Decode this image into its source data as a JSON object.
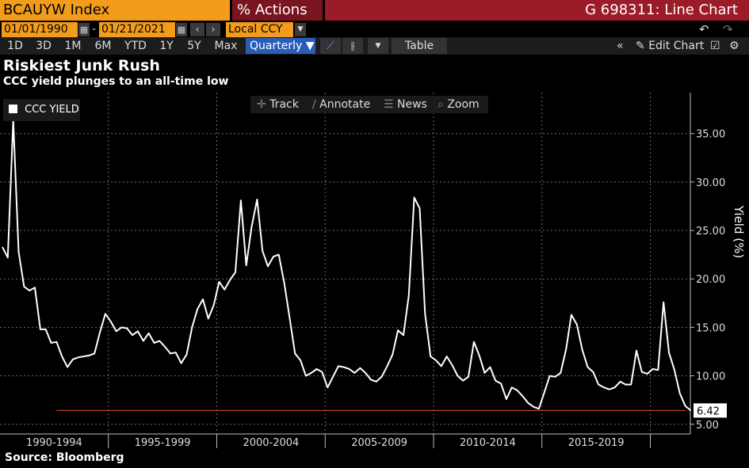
{
  "header": {
    "ticker": "BCAUYW Index",
    "actions_label": "Actions",
    "actions_icon": "menu-96-icon",
    "chart_name": "G 698311: Line Chart"
  },
  "toolbar": {
    "start_date": "01/01/1990",
    "end_date": "01/21/2021",
    "currency": "Local CCY",
    "ranges": [
      "1D",
      "3D",
      "1M",
      "6M",
      "YTD",
      "1Y",
      "5Y",
      "Max"
    ],
    "frequency": "Quarterly",
    "table_label": "Table",
    "edit_chart_label": "Edit Chart"
  },
  "chart_tools": {
    "track": "Track",
    "annotate": "Annotate",
    "news": "News",
    "zoom": "Zoom"
  },
  "source": "Source: Bloomberg",
  "chart_data": {
    "type": "line",
    "title": "Riskiest Junk Rush",
    "subtitle": "CCC yield plunges to an all-time low",
    "ylabel": "Yield (%)",
    "xlabel": "",
    "legend": "top-left",
    "ylim": [
      4,
      38
    ],
    "yticks": [
      "5.00",
      "10.00",
      "15.00",
      "20.00",
      "25.00",
      "30.00",
      "35.00"
    ],
    "xcategories": [
      "1990-1994",
      "1995-1999",
      "2000-2004",
      "2005-2009",
      "2010-2014",
      "2015-2019"
    ],
    "last_value": 6.42,
    "last_value_label": "6.42",
    "reference_line": 6.42,
    "series": [
      {
        "name": "CCC YIELD",
        "start_year": 1990.0,
        "step_years": 0.25,
        "values": [
          23.3,
          22.2,
          36.4,
          22.8,
          19.2,
          18.8,
          19.1,
          14.8,
          14.8,
          13.4,
          13.5,
          12.0,
          10.9,
          11.7,
          11.9,
          12.0,
          12.1,
          12.3,
          14.5,
          16.4,
          15.6,
          14.6,
          15.0,
          14.9,
          14.2,
          14.6,
          13.6,
          14.4,
          13.4,
          13.6,
          13.0,
          12.3,
          12.4,
          11.3,
          12.2,
          15.0,
          16.9,
          17.9,
          15.9,
          17.3,
          19.7,
          18.9,
          19.9,
          20.7,
          28.1,
          21.4,
          25.4,
          28.2,
          22.9,
          21.3,
          22.3,
          22.5,
          19.6,
          16.0,
          12.3,
          11.6,
          10.0,
          10.3,
          10.7,
          10.4,
          8.8,
          9.9,
          11.0,
          10.9,
          10.7,
          10.3,
          10.8,
          10.3,
          9.6,
          9.4,
          9.9,
          11.0,
          12.2,
          14.7,
          14.2,
          18.3,
          28.4,
          27.3,
          16.4,
          12.0,
          11.6,
          11.0,
          12.0,
          11.1,
          10.0,
          9.5,
          9.9,
          13.5,
          12.1,
          10.3,
          10.9,
          9.5,
          9.2,
          7.6,
          8.8,
          8.5,
          7.9,
          7.2,
          6.8,
          6.6,
          8.3,
          10.0,
          9.9,
          10.3,
          12.7,
          16.3,
          15.3,
          12.7,
          10.9,
          10.4,
          9.1,
          8.8,
          8.6,
          8.8,
          9.4,
          9.1,
          9.1,
          12.6,
          10.4,
          10.2,
          10.7,
          10.6,
          17.6,
          12.4,
          10.6,
          8.2,
          6.9,
          6.42
        ]
      }
    ]
  },
  "colors": {
    "accent_orange": "#f39c1c",
    "header_red": "#9b1c28",
    "actions_red": "#7a1520",
    "quarterly_blue": "#2a5db8",
    "series_line": "#ffffff",
    "reference_line": "#c0392b",
    "grid": "#6a6a6a"
  }
}
